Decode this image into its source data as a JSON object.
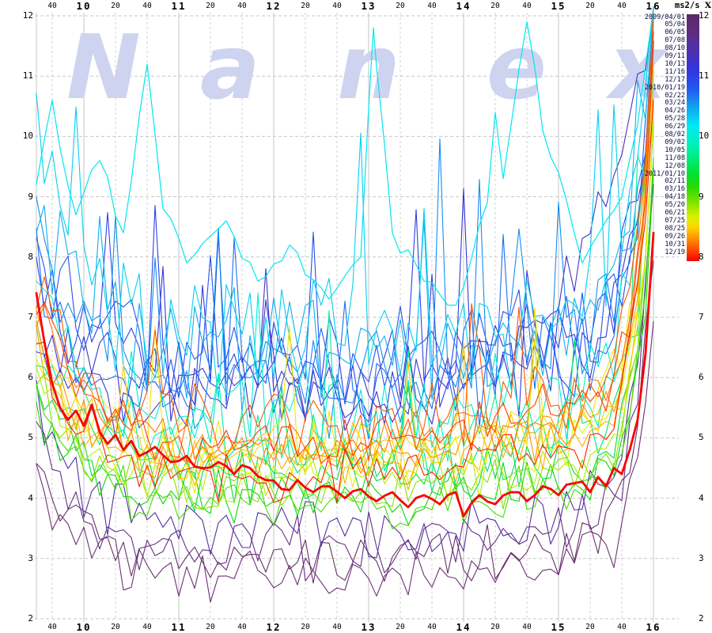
{
  "watermark_letters": [
    "N",
    "a",
    "n",
    "e",
    "x"
  ],
  "header": {
    "units_label": "ms2/s",
    "units_suffix": "X"
  },
  "chart_data": {
    "type": "line",
    "xlim": [
      "09:30",
      "16:00"
    ],
    "ylim": [
      2,
      12
    ],
    "grid": true,
    "legend_position": "right",
    "x_ticks": [
      {
        "m": 10,
        "label": "40",
        "hour": false
      },
      {
        "m": 30,
        "label": "10",
        "hour": true
      },
      {
        "m": 50,
        "label": "20",
        "hour": false
      },
      {
        "m": 70,
        "label": "40",
        "hour": false
      },
      {
        "m": 90,
        "label": "11",
        "hour": true
      },
      {
        "m": 110,
        "label": "20",
        "hour": false
      },
      {
        "m": 130,
        "label": "40",
        "hour": false
      },
      {
        "m": 150,
        "label": "12",
        "hour": true
      },
      {
        "m": 170,
        "label": "20",
        "hour": false
      },
      {
        "m": 190,
        "label": "40",
        "hour": false
      },
      {
        "m": 210,
        "label": "13",
        "hour": true
      },
      {
        "m": 230,
        "label": "20",
        "hour": false
      },
      {
        "m": 250,
        "label": "40",
        "hour": false
      },
      {
        "m": 270,
        "label": "14",
        "hour": true
      },
      {
        "m": 290,
        "label": "20",
        "hour": false
      },
      {
        "m": 310,
        "label": "40",
        "hour": false
      },
      {
        "m": 330,
        "label": "15",
        "hour": true
      },
      {
        "m": 350,
        "label": "20",
        "hour": false
      },
      {
        "m": 370,
        "label": "40",
        "hour": false
      },
      {
        "m": 390,
        "label": "16",
        "hour": true
      }
    ],
    "y_ticks": [
      12,
      11,
      10,
      9,
      8,
      7,
      6,
      5,
      4,
      3,
      2
    ],
    "colorbar": {
      "tick_values": [
        12,
        11,
        10,
        9,
        8
      ],
      "gradient": [
        [
          "0%",
          "#5B2A66"
        ],
        [
          "7%",
          "#5E2C7E"
        ],
        [
          "14%",
          "#4F31A8"
        ],
        [
          "22%",
          "#3434DC"
        ],
        [
          "30%",
          "#2455F0"
        ],
        [
          "38%",
          "#0FA8F0"
        ],
        [
          "45%",
          "#00E8F4"
        ],
        [
          "52%",
          "#00F0C0"
        ],
        [
          "58%",
          "#00EC80"
        ],
        [
          "64%",
          "#00E238"
        ],
        [
          "70%",
          "#27D900"
        ],
        [
          "76%",
          "#7CE300"
        ],
        [
          "82%",
          "#D8F000"
        ],
        [
          "86%",
          "#FCD800"
        ],
        [
          "90%",
          "#FCA000"
        ],
        [
          "95%",
          "#FC5000"
        ],
        [
          "100%",
          "#FA0000"
        ]
      ]
    },
    "series": [
      {
        "date": "2009/04/01",
        "color": "#693067",
        "open": 4.8,
        "mid": 3.0,
        "close": 7.8,
        "noise": 0.48,
        "close_ramp": 12,
        "drift": 0.2
      },
      {
        "date": "05/04",
        "color": "#6B3175",
        "open": 4.2,
        "mid": 2.7,
        "close": 7.0,
        "noise": 0.5,
        "close_ramp": 10,
        "drift": 0.2
      },
      {
        "date": "06/05",
        "color": "#643088",
        "open": 5.2,
        "mid": 3.2,
        "close": 8.8,
        "noise": 0.5,
        "close_ramp": 12,
        "drift": 0.3
      },
      {
        "date": "07/08",
        "color": "#53309F",
        "open": 5.8,
        "mid": 3.5,
        "close": 9.2,
        "noise": 0.52,
        "close_ramp": 13,
        "drift": 0.3
      },
      {
        "date": "08/10",
        "color": "#4433C0",
        "open": 6.4,
        "mid": 5.7,
        "close": 12.0,
        "noise": 0.7,
        "spike": [
          0.04,
          1.8
        ],
        "close_ramp": 40,
        "drift": 0.3
      },
      {
        "date": "09/11",
        "color": "#3737D8",
        "open": 7.2,
        "mid": 5.9,
        "close": 11.4,
        "noise": 0.8,
        "spike": [
          0.05,
          2.0
        ],
        "close_ramp": 12,
        "drift": 0.5
      },
      {
        "date": "10/13",
        "color": "#2D40E8",
        "open": 7.8,
        "mid": 6.1,
        "close": 11.8,
        "noise": 0.85,
        "spike": [
          0.05,
          2.0
        ],
        "close_ramp": 12,
        "drift": 0.5
      },
      {
        "date": "11/16",
        "color": "#2552F0",
        "open": 8.2,
        "mid": 6.3,
        "close": 11.2,
        "noise": 0.9,
        "spike": [
          0.05,
          2.2
        ],
        "close_ramp": 12,
        "drift": 0.5
      },
      {
        "date": "12/17",
        "color": "#1D6DF2",
        "open": 7.6,
        "mid": 5.8,
        "close": 11.9,
        "noise": 0.9,
        "spike": [
          0.06,
          2.2
        ],
        "close_ramp": 12,
        "drift": 0.5
      },
      {
        "date": "2010/01/19",
        "color": "#158DF2",
        "open": 8.6,
        "mid": 6.0,
        "close": 11.5,
        "noise": 0.9,
        "spike": [
          0.06,
          2.3
        ],
        "close_ramp": 12,
        "drift": 0.5
      },
      {
        "date": "02/22",
        "color": "#0DAFF0",
        "open": 8.9,
        "mid": 6.4,
        "close": 12.0,
        "noise": 1.0,
        "spike": [
          0.06,
          2.4
        ],
        "close_ramp": 12,
        "drift": 0.5
      },
      {
        "date": "03/24",
        "color": "#05CFF2",
        "open": 10.4,
        "mid": 6.7,
        "close": 11.6,
        "noise": 1.1,
        "spike": [
          0.07,
          2.4
        ],
        "close_ramp": 12,
        "drift": 0.5
      },
      {
        "date": "04/26",
        "color": "#00E7F0",
        "noise": 0.15,
        "width": 1.2,
        "key_points": [
          [
            0,
            9.2
          ],
          [
            10,
            10.6
          ],
          [
            15,
            9.8
          ],
          [
            25,
            8.7
          ],
          [
            40,
            9.6
          ],
          [
            55,
            8.4
          ],
          [
            70,
            11.2
          ],
          [
            80,
            8.8
          ],
          [
            95,
            7.9
          ],
          [
            120,
            8.6
          ],
          [
            140,
            7.6
          ],
          [
            160,
            8.2
          ],
          [
            185,
            7.3
          ],
          [
            205,
            8.0
          ],
          [
            213,
            11.8
          ],
          [
            225,
            8.4
          ],
          [
            245,
            7.6
          ],
          [
            265,
            7.2
          ],
          [
            285,
            8.9
          ],
          [
            290,
            10.4
          ],
          [
            295,
            9.3
          ],
          [
            310,
            11.9
          ],
          [
            320,
            10.1
          ],
          [
            330,
            9.4
          ],
          [
            345,
            7.9
          ],
          [
            360,
            8.6
          ],
          [
            370,
            9.0
          ],
          [
            380,
            10.2
          ],
          [
            390,
            12.1
          ]
        ]
      },
      {
        "date": "05/28",
        "color": "#00EFD4",
        "open": 7.4,
        "mid": 5.4,
        "close": 11.2,
        "noise": 0.85,
        "spike": [
          0.05,
          2.0
        ],
        "close_ramp": 12,
        "drift": 0.4
      },
      {
        "date": "06/29",
        "color": "#00ECA6",
        "open": 7.0,
        "mid": 5.0,
        "close": 10.6,
        "noise": 0.7,
        "spike": [
          0.04,
          1.6
        ],
        "close_ramp": 11,
        "drift": 0.4
      },
      {
        "date": "08/02",
        "color": "#00E374",
        "open": 6.4,
        "mid": 4.6,
        "close": 10.0,
        "noise": 0.55,
        "spike": [
          0.03,
          1.2
        ],
        "close_ramp": 11,
        "drift": 0.35
      },
      {
        "date": "09/02",
        "color": "#00DB40",
        "open": 6.0,
        "mid": 4.3,
        "close": 9.6,
        "noise": 0.5,
        "close_ramp": 11,
        "drift": 0.3
      },
      {
        "date": "10/05",
        "color": "#0DD60D",
        "open": 5.6,
        "mid": 4.0,
        "close": 9.2,
        "noise": 0.45,
        "close_ramp": 10,
        "drift": 0.3
      },
      {
        "date": "11/08",
        "color": "#47DC00",
        "open": 5.9,
        "mid": 3.9,
        "close": 9.4,
        "noise": 0.45,
        "close_ramp": 10,
        "drift": 0.3
      },
      {
        "date": "12/08",
        "color": "#80E400",
        "open": 6.1,
        "mid": 4.1,
        "close": 9.6,
        "noise": 0.45,
        "close_ramp": 10,
        "drift": 0.35
      },
      {
        "date": "2011/01/10",
        "color": "#B3EC00",
        "open": 6.3,
        "mid": 4.3,
        "close": 9.8,
        "noise": 0.45,
        "close_ramp": 10,
        "drift": 0.4
      },
      {
        "date": "02/11",
        "color": "#E0F200",
        "open": 6.5,
        "mid": 4.5,
        "close": 10.2,
        "noise": 0.45,
        "close_ramp": 10,
        "drift": 0.5
      },
      {
        "date": "03/16",
        "color": "#F6E300",
        "open": 7.0,
        "mid": 4.9,
        "close": 10.8,
        "noise": 0.5,
        "spike": [
          0.04,
          1.7
        ],
        "close_ramp": 10,
        "drift": 0.6
      },
      {
        "date": "04/18",
        "color": "#FBC900",
        "open": 6.8,
        "mid": 4.7,
        "close": 10.5,
        "noise": 0.5,
        "spike": [
          0.03,
          1.6
        ],
        "close_ramp": 10,
        "drift": 0.6
      },
      {
        "date": "05/20",
        "color": "#FCAD00",
        "open": 6.6,
        "mid": 4.5,
        "close": 10.3,
        "noise": 0.45,
        "close_ramp": 10,
        "drift": 0.6
      },
      {
        "date": "06/21",
        "color": "#FC9100",
        "open": 6.9,
        "mid": 4.7,
        "close": 10.7,
        "noise": 0.45,
        "close_ramp": 10,
        "drift": 0.6
      },
      {
        "date": "07/25",
        "color": "#FC7500",
        "open": 7.2,
        "mid": 4.9,
        "close": 11.1,
        "noise": 0.5,
        "close_ramp": 10,
        "drift": 0.7
      },
      {
        "date": "08/25",
        "color": "#FC5900",
        "open": 7.8,
        "mid": 5.2,
        "close": 11.5,
        "noise": 0.6,
        "spike": [
          0.03,
          1.4
        ],
        "close_ramp": 10,
        "drift": 0.7
      },
      {
        "date": "09/26",
        "color": "#FC3D00",
        "open": 7.5,
        "mid": 5.0,
        "close": 11.2,
        "noise": 0.5,
        "close_ramp": 10,
        "drift": 0.7
      },
      {
        "date": "10/31",
        "color": "#FC2100",
        "open": 6.9,
        "mid": 4.4,
        "close": 10.4,
        "noise": 0.45,
        "close_ramp": 10,
        "drift": 0.6
      },
      {
        "date": "12/19",
        "color": "#FA0000",
        "noise": 0.1,
        "width": 2.8,
        "key_points": [
          [
            0,
            7.4
          ],
          [
            5,
            6.6
          ],
          [
            10,
            5.9
          ],
          [
            15,
            5.5
          ],
          [
            20,
            5.3
          ],
          [
            25,
            5.45
          ],
          [
            30,
            5.2
          ],
          [
            35,
            5.55
          ],
          [
            40,
            5.1
          ],
          [
            45,
            4.9
          ],
          [
            50,
            5.05
          ],
          [
            55,
            4.8
          ],
          [
            60,
            4.95
          ],
          [
            65,
            4.7
          ],
          [
            75,
            4.85
          ],
          [
            85,
            4.6
          ],
          [
            95,
            4.7
          ],
          [
            105,
            4.5
          ],
          [
            115,
            4.6
          ],
          [
            125,
            4.4
          ],
          [
            135,
            4.5
          ],
          [
            145,
            4.3
          ],
          [
            155,
            4.15
          ],
          [
            165,
            4.3
          ],
          [
            175,
            4.1
          ],
          [
            185,
            4.2
          ],
          [
            195,
            4.0
          ],
          [
            205,
            4.15
          ],
          [
            215,
            3.95
          ],
          [
            225,
            4.1
          ],
          [
            235,
            3.85
          ],
          [
            245,
            4.05
          ],
          [
            255,
            3.9
          ],
          [
            265,
            4.1
          ],
          [
            270,
            3.7
          ],
          [
            280,
            4.05
          ],
          [
            290,
            3.9
          ],
          [
            300,
            4.1
          ],
          [
            310,
            3.95
          ],
          [
            320,
            4.2
          ],
          [
            330,
            4.05
          ],
          [
            340,
            4.25
          ],
          [
            350,
            4.1
          ],
          [
            355,
            4.35
          ],
          [
            360,
            4.2
          ],
          [
            365,
            4.5
          ],
          [
            370,
            4.4
          ],
          [
            375,
            4.8
          ],
          [
            380,
            5.3
          ],
          [
            385,
            6.4
          ],
          [
            390,
            8.4
          ]
        ]
      }
    ]
  }
}
